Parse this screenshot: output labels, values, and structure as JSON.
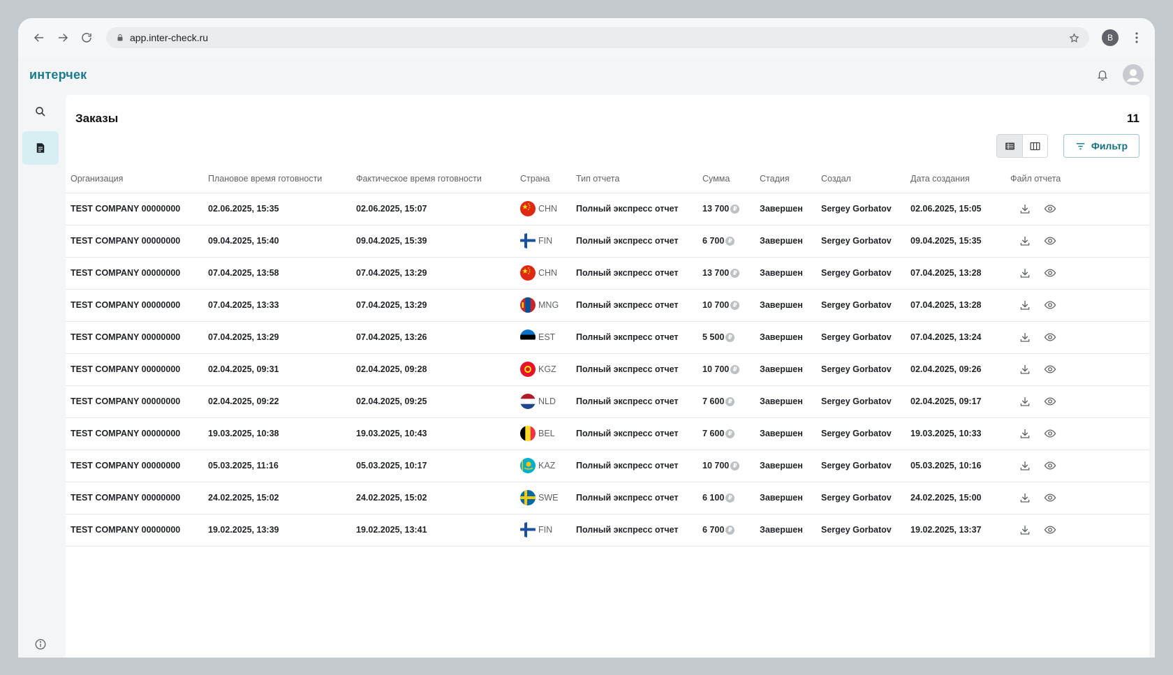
{
  "browser": {
    "url": "app.inter-check.ru",
    "profile_initial": "B"
  },
  "app": {
    "logo": "интерчек"
  },
  "page": {
    "title": "Заказы",
    "count": "11",
    "filter_label": "Фильтр"
  },
  "columns": {
    "org": "Организация",
    "planned": "Плановое время готовности",
    "actual": "Фактическое время готовности",
    "country": "Страна",
    "report_type": "Тип отчета",
    "sum": "Сумма",
    "stage": "Стадия",
    "created_by": "Создал",
    "created_at": "Дата создания",
    "file": "Файл отчета"
  },
  "currency_glyph": "₽",
  "rows": [
    {
      "org": "TEST COMPANY 00000000",
      "planned": "02.06.2025, 15:35",
      "actual": "02.06.2025, 15:07",
      "flag": "chn",
      "country": "CHN",
      "type": "Полный экспресс отчет",
      "sum": "13 700",
      "stage": "Завершен",
      "author": "Sergey Gorbatov",
      "created": "02.06.2025, 15:05"
    },
    {
      "org": "TEST COMPANY 00000000",
      "planned": "09.04.2025, 15:40",
      "actual": "09.04.2025, 15:39",
      "flag": "fin",
      "country": "FIN",
      "type": "Полный экспресс отчет",
      "sum": "6 700",
      "stage": "Завершен",
      "author": "Sergey Gorbatov",
      "created": "09.04.2025, 15:35"
    },
    {
      "org": "TEST COMPANY 00000000",
      "planned": "07.04.2025, 13:58",
      "actual": "07.04.2025, 13:29",
      "flag": "chn",
      "country": "CHN",
      "type": "Полный экспресс отчет",
      "sum": "13 700",
      "stage": "Завершен",
      "author": "Sergey Gorbatov",
      "created": "07.04.2025, 13:28"
    },
    {
      "org": "TEST COMPANY 00000000",
      "planned": "07.04.2025, 13:33",
      "actual": "07.04.2025, 13:29",
      "flag": "mng",
      "country": "MNG",
      "type": "Полный экспресс отчет",
      "sum": "10 700",
      "stage": "Завершен",
      "author": "Sergey Gorbatov",
      "created": "07.04.2025, 13:28"
    },
    {
      "org": "TEST COMPANY 00000000",
      "planned": "07.04.2025, 13:29",
      "actual": "07.04.2025, 13:26",
      "flag": "est",
      "country": "EST",
      "type": "Полный экспресс отчет",
      "sum": "5 500",
      "stage": "Завершен",
      "author": "Sergey Gorbatov",
      "created": "07.04.2025, 13:24"
    },
    {
      "org": "TEST COMPANY 00000000",
      "planned": "02.04.2025, 09:31",
      "actual": "02.04.2025, 09:28",
      "flag": "kgz",
      "country": "KGZ",
      "type": "Полный экспресс отчет",
      "sum": "10 700",
      "stage": "Завершен",
      "author": "Sergey Gorbatov",
      "created": "02.04.2025, 09:26"
    },
    {
      "org": "TEST COMPANY 00000000",
      "planned": "02.04.2025, 09:22",
      "actual": "02.04.2025, 09:25",
      "flag": "nld",
      "country": "NLD",
      "type": "Полный экспресс отчет",
      "sum": "7 600",
      "stage": "Завершен",
      "author": "Sergey Gorbatov",
      "created": "02.04.2025, 09:17"
    },
    {
      "org": "TEST COMPANY 00000000",
      "planned": "19.03.2025, 10:38",
      "actual": "19.03.2025, 10:43",
      "flag": "bel",
      "country": "BEL",
      "type": "Полный экспресс отчет",
      "sum": "7 600",
      "stage": "Завершен",
      "author": "Sergey Gorbatov",
      "created": "19.03.2025, 10:33"
    },
    {
      "org": "TEST COMPANY 00000000",
      "planned": "05.03.2025, 11:16",
      "actual": "05.03.2025, 10:17",
      "flag": "kaz",
      "country": "KAZ",
      "type": "Полный экспресс отчет",
      "sum": "10 700",
      "stage": "Завершен",
      "author": "Sergey Gorbatov",
      "created": "05.03.2025, 10:16"
    },
    {
      "org": "TEST COMPANY 00000000",
      "planned": "24.02.2025, 15:02",
      "actual": "24.02.2025, 15:02",
      "flag": "swe",
      "country": "SWE",
      "type": "Полный экспресс отчет",
      "sum": "6 100",
      "stage": "Завершен",
      "author": "Sergey Gorbatov",
      "created": "24.02.2025, 15:00"
    },
    {
      "org": "TEST COMPANY 00000000",
      "planned": "19.02.2025, 13:39",
      "actual": "19.02.2025, 13:41",
      "flag": "fin",
      "country": "FIN",
      "type": "Полный экспресс отчет",
      "sum": "6 700",
      "stage": "Завершен",
      "author": "Sergey Gorbatov",
      "created": "19.02.2025, 13:37"
    }
  ],
  "colors": {
    "brand": "#1a7b8f",
    "stage_done": "#1f9a4f",
    "active_nav_bg": "#d7eef3"
  }
}
